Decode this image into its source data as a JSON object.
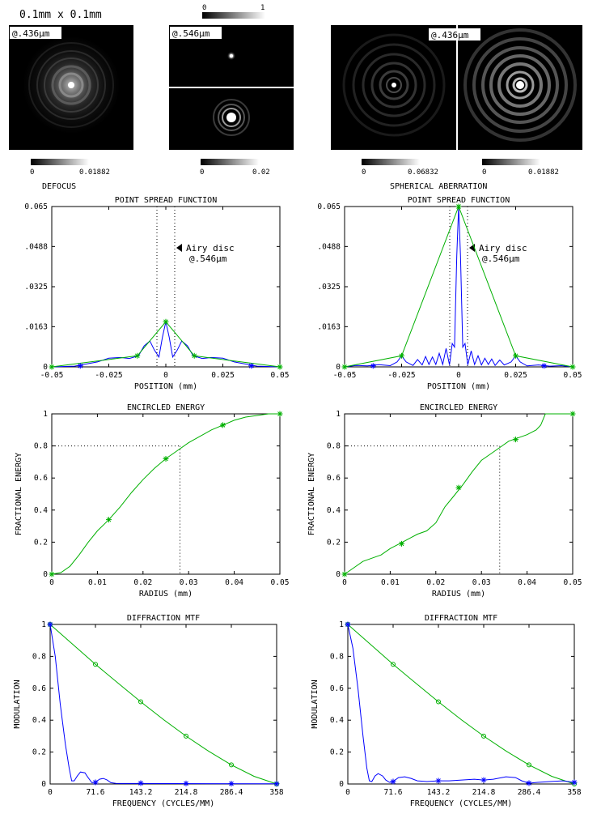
{
  "header": {
    "scale": "0.1mm x 0.1mm",
    "cbar_top_min": "0",
    "cbar_top_max": "1"
  },
  "images": {
    "defocus_wavelength": "@.436µm",
    "airy_wavelength": "@.546µm",
    "spherical_wavelength": "@.436µm",
    "cbar1_min": "0",
    "cbar1_max": "0.01882",
    "cbar2_min": "0",
    "cbar2_max": "0.02",
    "cbar3_min": "0",
    "cbar3_max": "0.06832",
    "cbar4_min": "0",
    "cbar4_max": "0.01882"
  },
  "captions": {
    "left": "DEFOCUS",
    "right": "SPHERICAL ABERRATION"
  },
  "colors": {
    "blue": "#0000ff",
    "green": "#00b000"
  },
  "chart_data": [
    {
      "id": "psf_left",
      "type": "line",
      "title": "POINT SPREAD FUNCTION",
      "xlabel": "POSITION (mm)",
      "ylabel": "",
      "xlim": [
        -0.05,
        0.05
      ],
      "ylim": [
        0,
        0.065
      ],
      "xticks": [
        -0.05,
        -0.025,
        0,
        0.025,
        0.05
      ],
      "xtick_labels": [
        "-0.05",
        "-0.025",
        "0",
        "0.025",
        "0.05"
      ],
      "yticks": [
        0,
        0.0163,
        0.0325,
        0.0488,
        0.065
      ],
      "ytick_labels": [
        "0",
        ".0163",
        ".0325",
        ".0488",
        "0.065"
      ],
      "annotation": [
        "Airy disc",
        "@.546µm"
      ],
      "airy_lines": [
        -0.0039,
        0.0039
      ],
      "series": [
        {
          "color": "blue",
          "x": [
            -0.05,
            -0.04,
            -0.03,
            -0.025,
            -0.02,
            -0.016,
            -0.012,
            -0.0095,
            -0.007,
            -0.005,
            -0.003,
            -0.0015,
            0,
            0.0015,
            0.003,
            0.005,
            0.007,
            0.0095,
            0.012,
            0.016,
            0.02,
            0.025,
            0.03,
            0.04,
            0.05
          ],
          "y": [
            0,
            0.0003,
            0.002,
            0.0035,
            0.0038,
            0.0034,
            0.0045,
            0.0085,
            0.0105,
            0.0068,
            0.004,
            0.012,
            0.0183,
            0.012,
            0.004,
            0.0068,
            0.0105,
            0.0085,
            0.0045,
            0.0034,
            0.0038,
            0.0035,
            0.002,
            0.0003,
            0
          ]
        },
        {
          "color": "green",
          "x": [
            -0.05,
            -0.0125,
            0,
            0.0125,
            0.05
          ],
          "y": [
            0,
            0.0045,
            0.0183,
            0.0045,
            0
          ],
          "marker": "*"
        }
      ],
      "blue_markers": {
        "x": [
          -0.0375,
          0.0375
        ],
        "y": [
          0.0004,
          0.0004
        ]
      }
    },
    {
      "id": "psf_right",
      "type": "line",
      "title": "POINT SPREAD FUNCTION",
      "xlabel": "POSITION (mm)",
      "ylabel": "",
      "xlim": [
        -0.05,
        0.05
      ],
      "ylim": [
        0,
        0.065
      ],
      "xticks": [
        -0.05,
        -0.025,
        0,
        0.025,
        0.05
      ],
      "xtick_labels": [
        "-0.05",
        "-0.025",
        "0",
        "0.025",
        "0.05"
      ],
      "yticks": [
        0,
        0.0163,
        0.0325,
        0.0488,
        0.065
      ],
      "ytick_labels": [
        "0",
        ".0163",
        ".0325",
        ".0488",
        "0.065"
      ],
      "annotation": [
        "Airy disc",
        "@.546µm"
      ],
      "airy_lines": [
        -0.0039,
        0.0039
      ],
      "series": [
        {
          "color": "blue",
          "x": [
            -0.05,
            -0.045,
            -0.04,
            -0.035,
            -0.03,
            -0.027,
            -0.025,
            -0.023,
            -0.02,
            -0.018,
            -0.016,
            -0.0145,
            -0.013,
            -0.0115,
            -0.01,
            -0.0085,
            -0.007,
            -0.0055,
            -0.004,
            -0.0028,
            -0.0018,
            -0.0008,
            0,
            0.0008,
            0.0018,
            0.0028,
            0.004,
            0.0055,
            0.007,
            0.0085,
            0.01,
            0.0115,
            0.013,
            0.0145,
            0.016,
            0.018,
            0.02,
            0.023,
            0.025,
            0.027,
            0.03,
            0.035,
            0.04,
            0.045,
            0.05
          ],
          "y": [
            0,
            0.0006,
            0.0004,
            0.0009,
            0.0005,
            0.002,
            0.0045,
            0.002,
            0.0006,
            0.003,
            0.0008,
            0.0042,
            0.001,
            0.004,
            0.001,
            0.0055,
            0.001,
            0.0075,
            0.0008,
            0.0095,
            0.008,
            0.045,
            0.065,
            0.045,
            0.008,
            0.0095,
            0.0008,
            0.0065,
            0.001,
            0.0045,
            0.0008,
            0.0035,
            0.001,
            0.0032,
            0.0006,
            0.0028,
            0.0008,
            0.002,
            0.0045,
            0.002,
            0.0004,
            0.0008,
            0.0003,
            0.0005,
            0
          ]
        },
        {
          "color": "green",
          "x": [
            -0.05,
            -0.025,
            0,
            0.025,
            0.05
          ],
          "y": [
            0,
            0.0045,
            0.065,
            0.0045,
            0
          ],
          "marker": "*"
        }
      ],
      "blue_markers": {
        "x": [
          -0.0375,
          0.0375
        ],
        "y": [
          0.0004,
          0.0004
        ]
      }
    },
    {
      "id": "ee_left",
      "type": "line",
      "title": "ENCIRCLED ENERGY",
      "xlabel": "RADIUS (mm)",
      "ylabel": "FRACTIONAL ENERGY",
      "xlim": [
        0,
        0.05
      ],
      "ylim": [
        0,
        1
      ],
      "xticks": [
        0,
        0.01,
        0.02,
        0.03,
        0.04,
        0.05
      ],
      "xtick_labels": [
        "0",
        "0.01",
        "0.02",
        "0.03",
        "0.04",
        "0.05"
      ],
      "yticks": [
        0,
        0.2,
        0.4,
        0.6,
        0.8,
        1
      ],
      "ytick_labels": [
        "0",
        "0.2",
        "0.4",
        "0.6",
        "0.8",
        "1"
      ],
      "ref_y": 0.8,
      "ref_x": 0.0281,
      "series": [
        {
          "color": "green",
          "marker": "*",
          "marker_x": [
            0,
            0.0125,
            0.025,
            0.0375,
            0.05
          ],
          "marker_y": [
            0,
            0.34,
            0.72,
            0.93,
            1.0
          ],
          "x": [
            0,
            0.002,
            0.004,
            0.006,
            0.008,
            0.01,
            0.0125,
            0.015,
            0.0175,
            0.02,
            0.0225,
            0.025,
            0.0275,
            0.03,
            0.0325,
            0.035,
            0.0375,
            0.04,
            0.0425,
            0.045,
            0.0475,
            0.05
          ],
          "y": [
            0,
            0.01,
            0.05,
            0.12,
            0.2,
            0.27,
            0.34,
            0.42,
            0.51,
            0.59,
            0.66,
            0.72,
            0.77,
            0.82,
            0.86,
            0.9,
            0.93,
            0.96,
            0.98,
            0.99,
            1.0,
            1.0
          ]
        }
      ]
    },
    {
      "id": "ee_right",
      "type": "line",
      "title": "ENCIRCLED ENERGY",
      "xlabel": "RADIUS (mm)",
      "ylabel": "FRACTIONAL ENERGY",
      "xlim": [
        0,
        0.05
      ],
      "ylim": [
        0,
        1
      ],
      "xticks": [
        0,
        0.01,
        0.02,
        0.03,
        0.04,
        0.05
      ],
      "xtick_labels": [
        "0",
        "0.01",
        "0.02",
        "0.03",
        "0.04",
        "0.05"
      ],
      "yticks": [
        0,
        0.2,
        0.4,
        0.6,
        0.8,
        1
      ],
      "ytick_labels": [
        "0",
        "0.2",
        "0.4",
        "0.6",
        "0.8",
        "1"
      ],
      "ref_y": 0.8,
      "ref_x": 0.034,
      "series": [
        {
          "color": "green",
          "marker": "*",
          "marker_x": [
            0,
            0.0125,
            0.025,
            0.0375,
            0.05
          ],
          "marker_y": [
            0,
            0.19,
            0.54,
            0.84,
            1.0
          ],
          "x": [
            0,
            0.002,
            0.004,
            0.006,
            0.008,
            0.01,
            0.012,
            0.014,
            0.016,
            0.018,
            0.02,
            0.022,
            0.024,
            0.026,
            0.028,
            0.03,
            0.032,
            0.034,
            0.036,
            0.038,
            0.04,
            0.042,
            0.043,
            0.044,
            0.045,
            0.05
          ],
          "y": [
            0,
            0.04,
            0.08,
            0.1,
            0.12,
            0.16,
            0.19,
            0.22,
            0.25,
            0.27,
            0.32,
            0.42,
            0.49,
            0.56,
            0.64,
            0.71,
            0.75,
            0.79,
            0.83,
            0.85,
            0.87,
            0.9,
            0.93,
            1.0,
            1.0,
            1.0
          ]
        }
      ]
    },
    {
      "id": "mtf_left",
      "type": "line",
      "title": "DIFFRACTION MTF",
      "xlabel": "FREQUENCY (CYCLES/MM)",
      "ylabel": "MODULATION",
      "xlim": [
        0,
        358
      ],
      "ylim": [
        0,
        1
      ],
      "xticks": [
        0,
        71.6,
        143.2,
        214.8,
        286.4,
        358
      ],
      "xtick_labels": [
        "0",
        "71.6",
        "143.2",
        "214.8",
        "286.4",
        "358"
      ],
      "yticks": [
        0,
        0.2,
        0.4,
        0.6,
        0.8,
        1
      ],
      "ytick_labels": [
        "0",
        "0.2",
        "0.4",
        "0.6",
        "0.8",
        "1"
      ],
      "series": [
        {
          "color": "green",
          "marker": "o",
          "marker_x": [
            0,
            71.6,
            143.2,
            214.8,
            286.4,
            358
          ],
          "marker_y": [
            1,
            0.75,
            0.515,
            0.3,
            0.12,
            0
          ],
          "x": [
            0,
            35.8,
            71.6,
            107.4,
            143.2,
            179,
            214.8,
            250.6,
            286.4,
            322.2,
            358
          ],
          "y": [
            1,
            0.875,
            0.75,
            0.632,
            0.515,
            0.404,
            0.3,
            0.205,
            0.12,
            0.048,
            0
          ]
        },
        {
          "color": "blue",
          "marker": "*",
          "marker_x": [
            0,
            71.6,
            143.2,
            214.8,
            286.4,
            358
          ],
          "marker_y": [
            1,
            0.01,
            0.005,
            0.003,
            0.002,
            0.001
          ],
          "x": [
            0,
            8,
            16,
            24,
            30,
            34,
            38,
            43,
            48,
            55,
            60,
            66,
            71.6,
            78,
            84,
            90,
            96,
            104,
            114,
            143.2,
            358
          ],
          "y": [
            1,
            0.8,
            0.5,
            0.25,
            0.1,
            0.02,
            0.02,
            0.05,
            0.075,
            0.07,
            0.04,
            0.008,
            0.01,
            0.03,
            0.035,
            0.025,
            0.008,
            0.004,
            0.003,
            0.003,
            0.001
          ]
        }
      ]
    },
    {
      "id": "mtf_right",
      "type": "line",
      "title": "DIFFRACTION MTF",
      "xlabel": "FREQUENCY (CYCLES/MM)",
      "ylabel": "MODULATION",
      "xlim": [
        0,
        358
      ],
      "ylim": [
        0,
        1
      ],
      "xticks": [
        0,
        71.6,
        143.2,
        214.8,
        286.4,
        358
      ],
      "xtick_labels": [
        "0",
        "71.6",
        "143.2",
        "214.8",
        "286.4",
        "358"
      ],
      "yticks": [
        0,
        0.2,
        0.4,
        0.6,
        0.8,
        1
      ],
      "ytick_labels": [
        "0",
        "0.2",
        "0.4",
        "0.6",
        "0.8",
        "1"
      ],
      "series": [
        {
          "color": "green",
          "marker": "o",
          "marker_x": [
            0,
            71.6,
            143.2,
            214.8,
            286.4,
            358
          ],
          "marker_y": [
            1,
            0.75,
            0.515,
            0.3,
            0.12,
            0
          ],
          "x": [
            0,
            35.8,
            71.6,
            107.4,
            143.2,
            179,
            214.8,
            250.6,
            286.4,
            322.2,
            358
          ],
          "y": [
            1,
            0.875,
            0.75,
            0.632,
            0.515,
            0.404,
            0.3,
            0.205,
            0.12,
            0.048,
            0
          ]
        },
        {
          "color": "blue",
          "marker": "*",
          "marker_x": [
            0,
            71.6,
            143.2,
            214.8,
            286.4,
            358
          ],
          "marker_y": [
            1,
            0.015,
            0.02,
            0.025,
            0.005,
            0.01
          ],
          "x": [
            0,
            8,
            16,
            24,
            30,
            34,
            38,
            43,
            48,
            55,
            60,
            66,
            71.6,
            80,
            90,
            100,
            110,
            125,
            143.2,
            160,
            180,
            200,
            214.8,
            230,
            250,
            265,
            275,
            286.4,
            300,
            320,
            340,
            358
          ],
          "y": [
            1,
            0.85,
            0.6,
            0.3,
            0.1,
            0.02,
            0.015,
            0.05,
            0.065,
            0.05,
            0.025,
            0.01,
            0.015,
            0.04,
            0.045,
            0.035,
            0.02,
            0.015,
            0.02,
            0.02,
            0.025,
            0.03,
            0.025,
            0.03,
            0.045,
            0.04,
            0.02,
            0.005,
            0.01,
            0.015,
            0.02,
            0.01
          ]
        }
      ]
    }
  ]
}
